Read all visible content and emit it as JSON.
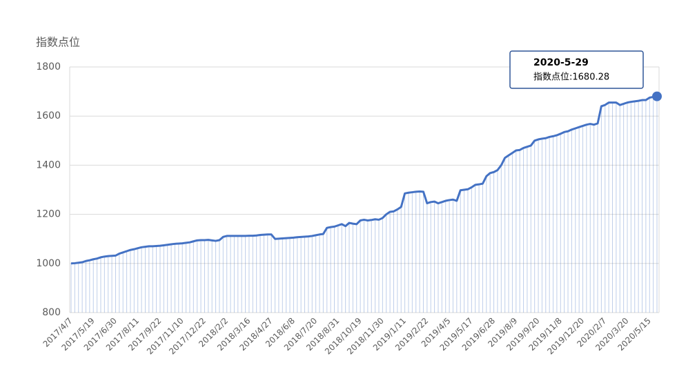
{
  "chart_data": {
    "type": "line",
    "y_axis_label": "指数点位",
    "categories": [
      "2017/4/7",
      null,
      null,
      null,
      null,
      null,
      "2017/5/19",
      null,
      null,
      null,
      null,
      null,
      "2017/6/30",
      null,
      null,
      null,
      null,
      null,
      "2017/8/11",
      null,
      null,
      null,
      null,
      null,
      "2017/9/22",
      null,
      null,
      null,
      null,
      null,
      "2017/11/10",
      null,
      null,
      null,
      null,
      null,
      "2017/12/22",
      null,
      null,
      null,
      null,
      null,
      "2018/2/2",
      null,
      null,
      null,
      null,
      null,
      "2018/3/16",
      null,
      null,
      null,
      null,
      null,
      "2018/4/27",
      null,
      null,
      null,
      null,
      null,
      "2018/6/8",
      null,
      null,
      null,
      null,
      null,
      "2018/7/20",
      null,
      null,
      null,
      null,
      null,
      "2018/8/31",
      null,
      null,
      null,
      null,
      null,
      "2018/10/19",
      null,
      null,
      null,
      null,
      null,
      "2018/11/30",
      null,
      null,
      null,
      null,
      null,
      "2019/1/11",
      null,
      null,
      null,
      null,
      null,
      "2019/2/22",
      null,
      null,
      null,
      null,
      null,
      "2019/4/5",
      null,
      null,
      null,
      null,
      null,
      "2019/5/17",
      null,
      null,
      null,
      null,
      null,
      "2019/6/28",
      null,
      null,
      null,
      null,
      null,
      "2019/8/9",
      null,
      null,
      null,
      null,
      null,
      "2019/9/20",
      null,
      null,
      null,
      null,
      null,
      "2019/11/8",
      null,
      null,
      null,
      null,
      null,
      "2019/12/20",
      null,
      null,
      null,
      null,
      null,
      "2020/2/7",
      null,
      null,
      null,
      null,
      null,
      "2020/3/20",
      null,
      null,
      null,
      null,
      null,
      "2020/5/15",
      null,
      null
    ],
    "series": [
      {
        "name": "指数点位",
        "color": "#4472c4",
        "values": [
          1000,
          1001,
          1003,
          1005,
          1010,
          1013,
          1017,
          1020,
          1025,
          1028,
          1030,
          1031,
          1032,
          1040,
          1045,
          1050,
          1055,
          1058,
          1062,
          1066,
          1068,
          1070,
          1070,
          1071,
          1072,
          1074,
          1076,
          1078,
          1080,
          1081,
          1082,
          1084,
          1086,
          1090,
          1094,
          1095,
          1095,
          1096,
          1094,
          1092,
          1095,
          1108,
          1112,
          1112,
          1112,
          1112,
          1112,
          1112,
          1113,
          1113,
          1114,
          1116,
          1117,
          1118,
          1118,
          1100,
          1101,
          1102,
          1103,
          1104,
          1105,
          1107,
          1108,
          1109,
          1110,
          1112,
          1115,
          1118,
          1120,
          1145,
          1148,
          1150,
          1155,
          1160,
          1152,
          1165,
          1162,
          1160,
          1175,
          1178,
          1175,
          1177,
          1180,
          1178,
          1185,
          1200,
          1210,
          1212,
          1220,
          1230,
          1285,
          1288,
          1290,
          1292,
          1293,
          1292,
          1245,
          1250,
          1252,
          1245,
          1250,
          1255,
          1258,
          1260,
          1255,
          1298,
          1300,
          1302,
          1310,
          1320,
          1322,
          1325,
          1355,
          1368,
          1372,
          1380,
          1400,
          1430,
          1440,
          1450,
          1460,
          1462,
          1470,
          1475,
          1480,
          1500,
          1505,
          1508,
          1510,
          1515,
          1518,
          1522,
          1528,
          1535,
          1538,
          1545,
          1550,
          1555,
          1560,
          1565,
          1568,
          1565,
          1570,
          1640,
          1645,
          1655,
          1655,
          1655,
          1645,
          1650,
          1655,
          1658,
          1660,
          1662,
          1665,
          1665,
          1675,
          1678,
          1680.28
        ]
      }
    ],
    "ylim": [
      800,
      1800
    ],
    "yticks": [
      800,
      1000,
      1200,
      1400,
      1600,
      1800
    ],
    "grid": true,
    "tooltip": {
      "title": "2020-5-29",
      "text": "指数点位:1680.28",
      "index": 158
    }
  }
}
